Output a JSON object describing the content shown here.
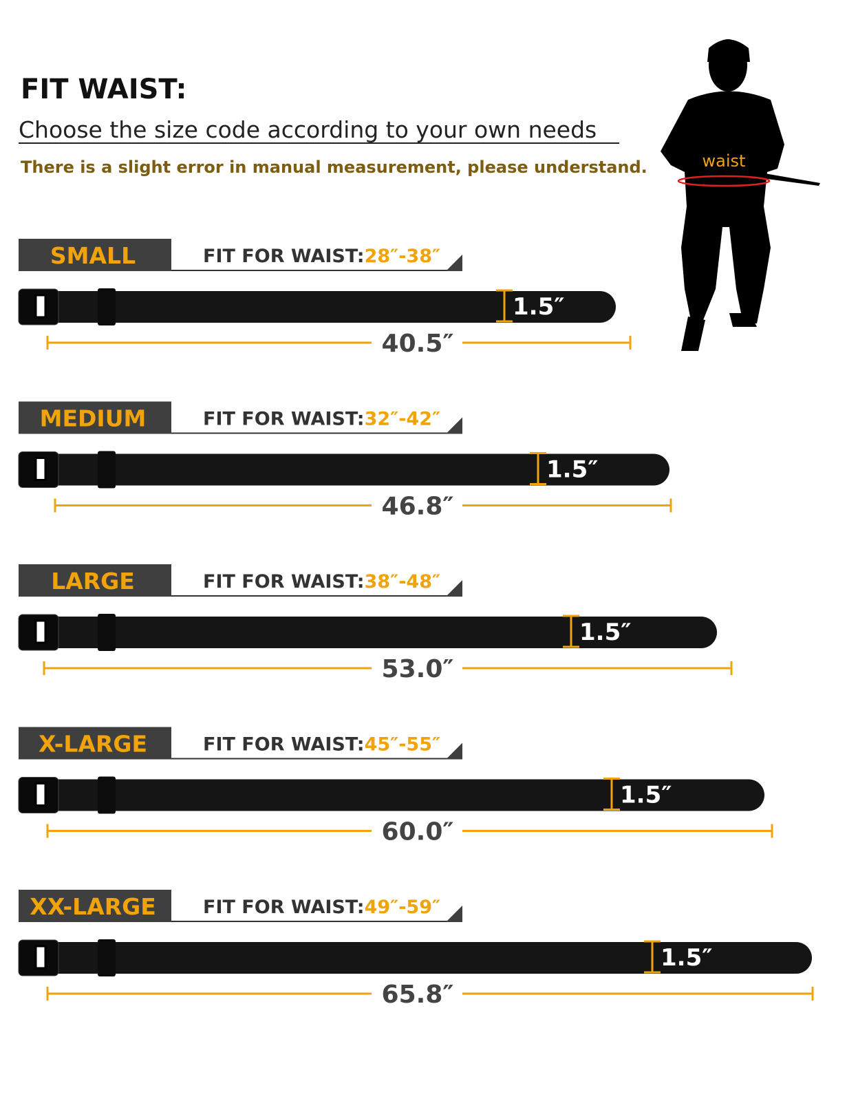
{
  "header": {
    "title": "FIT WAIST:",
    "subtitle": "Choose the size code according to your own needs",
    "note": "There is a slight error in manual measurement, please understand."
  },
  "figure": {
    "label": "waist"
  },
  "sizes": [
    {
      "name": "SMALL",
      "fit_label": "FIT FOR WAIST:",
      "fit_range": "28″-38″",
      "width": "1.5″",
      "length": "40.5″"
    },
    {
      "name": "MEDIUM",
      "fit_label": "FIT FOR WAIST:",
      "fit_range": "32″-42″",
      "width": "1.5″",
      "length": "46.8″"
    },
    {
      "name": "LARGE",
      "fit_label": "FIT FOR WAIST:",
      "fit_range": "38″-48″",
      "width": "1.5″",
      "length": "53.0″"
    },
    {
      "name": "X-LARGE",
      "fit_label": "FIT FOR WAIST:",
      "fit_range": "45″-55″",
      "width": "1.5″",
      "length": "60.0″"
    },
    {
      "name": "XX-LARGE",
      "fit_label": "FIT FOR WAIST:",
      "fit_range": "49″-59″",
      "width": "1.5″",
      "length": "65.8″"
    }
  ]
}
